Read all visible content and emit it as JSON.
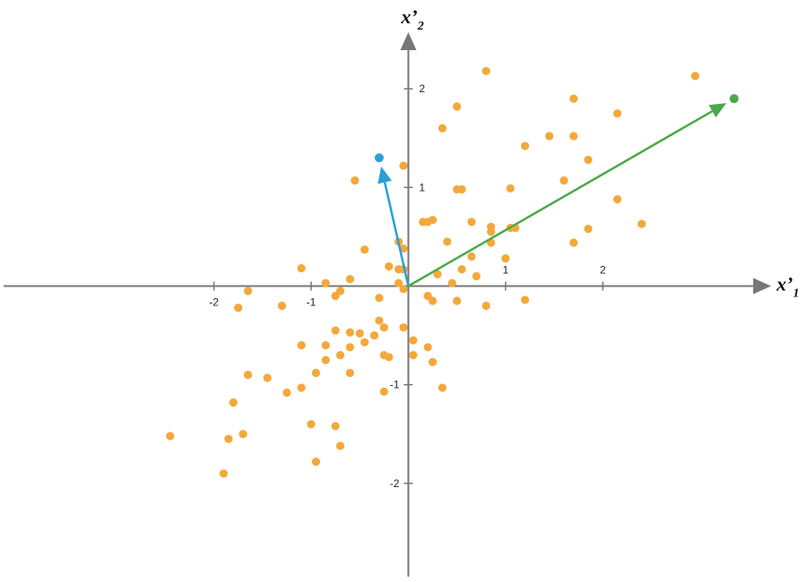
{
  "chart_data": {
    "type": "scatter",
    "title": "",
    "xlabel": "x’",
    "xlabel_subscript": "1",
    "ylabel": "x’",
    "ylabel_subscript": "2",
    "xlim": [
      -4.2,
      4.1
    ],
    "ylim": [
      -3.0,
      2.9
    ],
    "x_ticks": [
      -2,
      -1,
      1,
      2
    ],
    "y_ticks": [
      -2,
      -1,
      1,
      2
    ],
    "grid": false,
    "colors": {
      "points": "#f4a83a",
      "axis": "#777777",
      "vector_short": "#2b9fd8",
      "vector_long": "#4aaa49"
    },
    "vectors": [
      {
        "x": -0.3,
        "y": 1.3
      },
      {
        "x": 3.35,
        "y": 1.9
      }
    ],
    "points": [
      [
        0.8,
        2.18
      ],
      [
        2.95,
        2.13
      ],
      [
        1.7,
        1.9
      ],
      [
        2.15,
        1.75
      ],
      [
        0.5,
        1.82
      ],
      [
        0.35,
        1.6
      ],
      [
        1.45,
        1.52
      ],
      [
        1.7,
        1.52
      ],
      [
        1.2,
        1.42
      ],
      [
        1.85,
        1.28
      ],
      [
        -0.05,
        1.22
      ],
      [
        -0.55,
        1.07
      ],
      [
        1.6,
        1.07
      ],
      [
        0.5,
        0.98
      ],
      [
        0.55,
        0.98
      ],
      [
        1.05,
        0.99
      ],
      [
        2.15,
        0.88
      ],
      [
        0.15,
        0.65
      ],
      [
        0.2,
        0.65
      ],
      [
        0.25,
        0.67
      ],
      [
        0.65,
        0.65
      ],
      [
        0.85,
        0.6
      ],
      [
        0.85,
        0.55
      ],
      [
        1.05,
        0.59
      ],
      [
        1.1,
        0.59
      ],
      [
        1.85,
        0.58
      ],
      [
        2.4,
        0.63
      ],
      [
        0.4,
        0.45
      ],
      [
        0.85,
        0.44
      ],
      [
        1.7,
        0.44
      ],
      [
        -0.1,
        0.45
      ],
      [
        -0.05,
        0.38
      ],
      [
        -0.45,
        0.37
      ],
      [
        0.65,
        0.3
      ],
      [
        1.0,
        0.28
      ],
      [
        -0.2,
        0.2
      ],
      [
        -0.1,
        0.17
      ],
      [
        -0.05,
        0.17
      ],
      [
        0.55,
        0.17
      ],
      [
        -1.1,
        0.18
      ],
      [
        0.3,
        0.12
      ],
      [
        0.7,
        0.1
      ],
      [
        -0.6,
        0.07
      ],
      [
        -0.85,
        0.03
      ],
      [
        -0.1,
        0.03
      ],
      [
        0.45,
        0.03
      ],
      [
        -0.05,
        -0.03
      ],
      [
        -0.7,
        -0.05
      ],
      [
        -0.75,
        -0.1
      ],
      [
        0.2,
        -0.1
      ],
      [
        -1.65,
        -0.05
      ],
      [
        -0.3,
        -0.12
      ],
      [
        0.25,
        -0.15
      ],
      [
        0.5,
        -0.15
      ],
      [
        -1.3,
        -0.2
      ],
      [
        -1.75,
        -0.22
      ],
      [
        0.8,
        -0.2
      ],
      [
        1.2,
        -0.14
      ],
      [
        -0.3,
        -0.35
      ],
      [
        -0.25,
        -0.42
      ],
      [
        -0.05,
        -0.42
      ],
      [
        -0.75,
        -0.45
      ],
      [
        -0.6,
        -0.47
      ],
      [
        -0.5,
        -0.48
      ],
      [
        -0.35,
        -0.5
      ],
      [
        0.05,
        -0.55
      ],
      [
        -1.1,
        -0.6
      ],
      [
        -0.85,
        -0.6
      ],
      [
        -0.45,
        -0.57
      ],
      [
        -0.6,
        -0.62
      ],
      [
        0.2,
        -0.62
      ],
      [
        -0.7,
        -0.7
      ],
      [
        -0.25,
        -0.7
      ],
      [
        -0.2,
        -0.72
      ],
      [
        0.05,
        -0.7
      ],
      [
        -0.85,
        -0.75
      ],
      [
        0.25,
        -0.77
      ],
      [
        -1.65,
        -0.9
      ],
      [
        -1.45,
        -0.93
      ],
      [
        -0.95,
        -0.88
      ],
      [
        -0.6,
        -0.88
      ],
      [
        -1.1,
        -1.03
      ],
      [
        -1.25,
        -1.08
      ],
      [
        -0.25,
        -1.07
      ],
      [
        0.35,
        -1.03
      ],
      [
        -1.8,
        -1.18
      ],
      [
        -1.0,
        -1.4
      ],
      [
        -0.75,
        -1.42
      ],
      [
        -1.7,
        -1.5
      ],
      [
        -2.45,
        -1.52
      ],
      [
        -1.85,
        -1.55
      ],
      [
        -0.7,
        -1.62
      ],
      [
        -0.95,
        -1.78
      ],
      [
        -1.9,
        -1.9
      ]
    ]
  }
}
